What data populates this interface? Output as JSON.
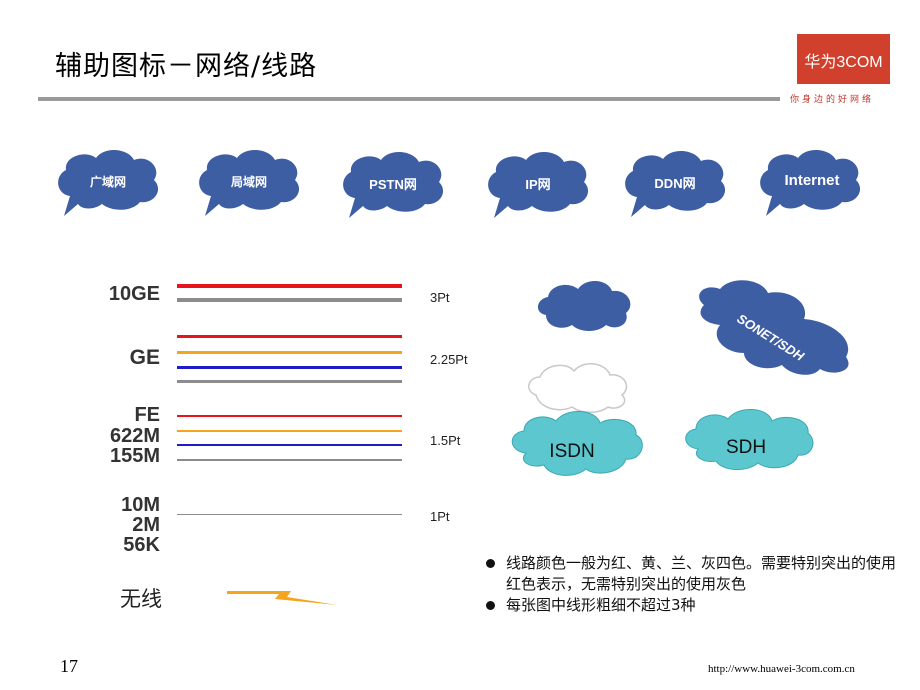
{
  "title": "辅助图标－网络/线路",
  "logo": {
    "text": "华为3COM",
    "slogan": "你身边的好网络"
  },
  "network_clouds": [
    {
      "label": "广域网"
    },
    {
      "label": "局域网"
    },
    {
      "label": "PSTN网"
    },
    {
      "label": "IP网"
    },
    {
      "label": "DDN网"
    },
    {
      "label": "Internet"
    }
  ],
  "speed_labels": {
    "ge10": "10GE",
    "ge": "GE",
    "fe": "FE",
    "m622": "622M",
    "m155": "155M",
    "m10": "10M",
    "m2": "2M",
    "k56": "56K",
    "wireless": "无线"
  },
  "thickness_labels": [
    "3Pt",
    "2.25Pt",
    "1.5Pt",
    "1Pt"
  ],
  "colors": {
    "red": "#e8141b",
    "gray": "#8c8c8c",
    "orange": "#f4a51c",
    "blue": "#1c1cc9",
    "logo": "#d1402c",
    "cloud_blue": "#3e5ea4",
    "cloud_teal": "#5cc7cf"
  },
  "right_clouds": {
    "sonet": "SONET/SDH",
    "isdn": "ISDN",
    "sdh": "SDH"
  },
  "notes": [
    "线路颜色一般为红、黄、兰、灰四色。需要特别突出的使用红色表示，无需特别突出的使用灰色",
    "每张图中线形粗细不超过3种"
  ],
  "page_number": "17",
  "url": "http://www.huawei-3com.com.cn"
}
